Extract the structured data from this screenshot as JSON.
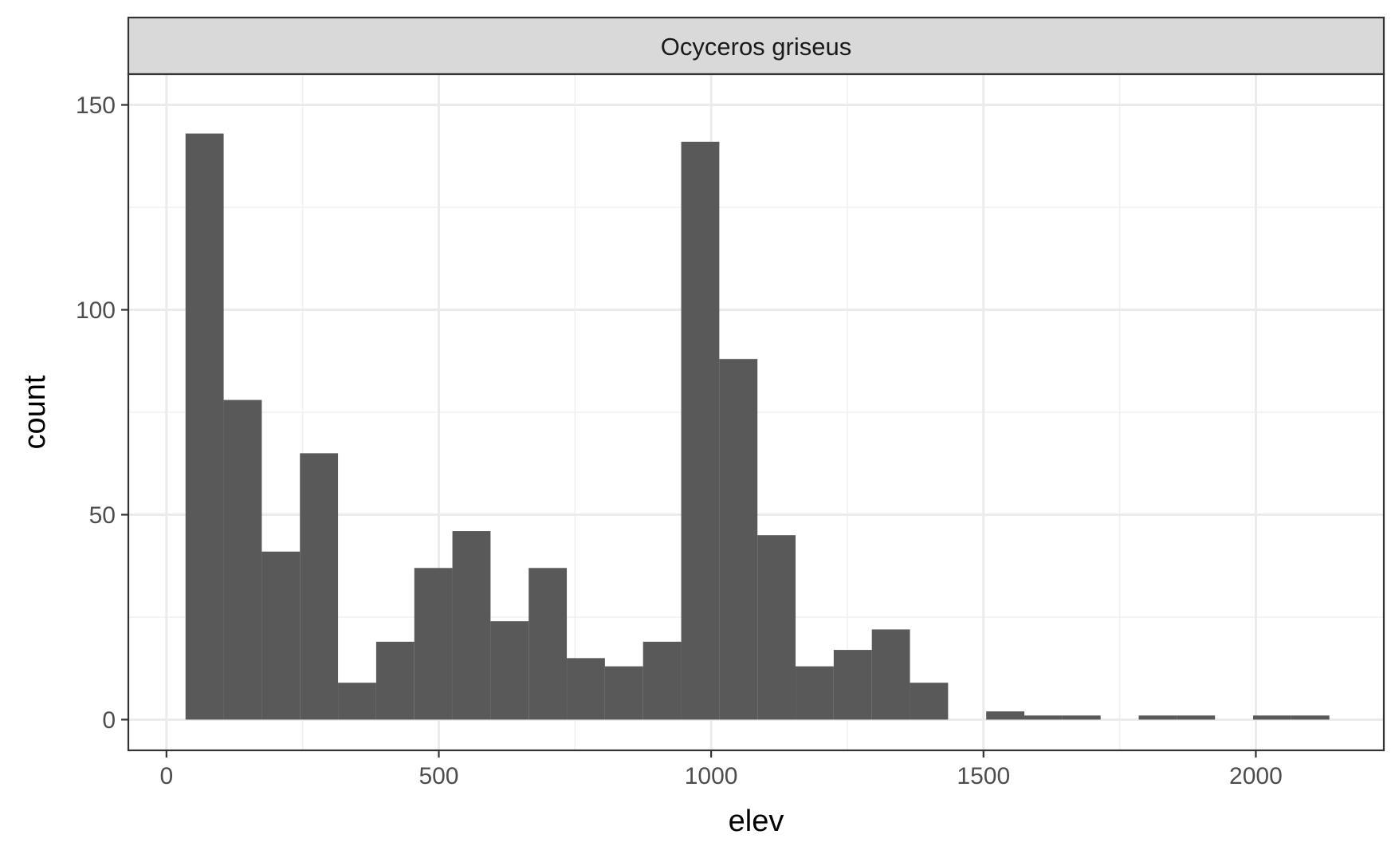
{
  "chart_data": {
    "type": "bar",
    "subtype": "histogram",
    "facet_label": "Ocyceros griseus",
    "xlabel": "elev",
    "ylabel": "count",
    "xlim": [
      -70,
      2235
    ],
    "ylim": [
      -7.5,
      157.5
    ],
    "x_ticks": [
      0,
      500,
      1000,
      1500,
      2000
    ],
    "x_tick_labels": [
      "0",
      "500",
      "1000",
      "1500",
      "2000"
    ],
    "y_ticks": [
      0,
      50,
      100,
      150
    ],
    "y_tick_labels": [
      "0",
      "50",
      "100",
      "150"
    ],
    "bin_width": 70,
    "grid": true,
    "bar_color": "#595959",
    "bins": [
      {
        "x0": 35,
        "x1": 105,
        "count": 143
      },
      {
        "x0": 105,
        "x1": 175,
        "count": 78
      },
      {
        "x0": 175,
        "x1": 245,
        "count": 41
      },
      {
        "x0": 245,
        "x1": 315,
        "count": 65
      },
      {
        "x0": 315,
        "x1": 385,
        "count": 9
      },
      {
        "x0": 385,
        "x1": 455,
        "count": 19
      },
      {
        "x0": 455,
        "x1": 525,
        "count": 37
      },
      {
        "x0": 525,
        "x1": 595,
        "count": 46
      },
      {
        "x0": 595,
        "x1": 665,
        "count": 24
      },
      {
        "x0": 665,
        "x1": 735,
        "count": 37
      },
      {
        "x0": 735,
        "x1": 805,
        "count": 15
      },
      {
        "x0": 805,
        "x1": 875,
        "count": 13
      },
      {
        "x0": 875,
        "x1": 945,
        "count": 19
      },
      {
        "x0": 945,
        "x1": 1015,
        "count": 141
      },
      {
        "x0": 1015,
        "x1": 1085,
        "count": 88
      },
      {
        "x0": 1085,
        "x1": 1155,
        "count": 45
      },
      {
        "x0": 1155,
        "x1": 1225,
        "count": 13
      },
      {
        "x0": 1225,
        "x1": 1295,
        "count": 17
      },
      {
        "x0": 1295,
        "x1": 1365,
        "count": 22
      },
      {
        "x0": 1365,
        "x1": 1435,
        "count": 9
      },
      {
        "x0": 1435,
        "x1": 1505,
        "count": 0
      },
      {
        "x0": 1505,
        "x1": 1575,
        "count": 2
      },
      {
        "x0": 1575,
        "x1": 1645,
        "count": 1
      },
      {
        "x0": 1645,
        "x1": 1715,
        "count": 1
      },
      {
        "x0": 1715,
        "x1": 1785,
        "count": 0
      },
      {
        "x0": 1785,
        "x1": 1855,
        "count": 1
      },
      {
        "x0": 1855,
        "x1": 1925,
        "count": 1
      },
      {
        "x0": 1925,
        "x1": 1995,
        "count": 0
      },
      {
        "x0": 1995,
        "x1": 2065,
        "count": 1
      },
      {
        "x0": 2065,
        "x1": 2135,
        "count": 1
      }
    ]
  }
}
